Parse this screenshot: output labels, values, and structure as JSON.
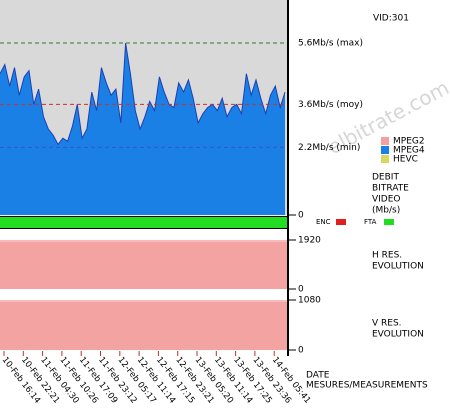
{
  "header": {
    "id_label": "VID:301",
    "watermark": "elbitrate.com"
  },
  "chart_data": [
    {
      "type": "area",
      "title": [
        "DEBIT",
        "BITRATE",
        "VIDEO",
        "(Mb/s)"
      ],
      "series": [
        {
          "color": "#1a80e6",
          "line_color": "#1c3fb5",
          "values": [
            4.6,
            4.9,
            4.2,
            4.8,
            3.9,
            4.5,
            4.7,
            3.6,
            4.1,
            3.2,
            2.8,
            2.6,
            2.3,
            2.5,
            2.4,
            2.9,
            3.6,
            2.5,
            2.8,
            4.0,
            3.4,
            4.8,
            4.3,
            3.9,
            4.1,
            3.0,
            5.6,
            4.6,
            3.4,
            2.8,
            3.2,
            3.7,
            3.4,
            4.5,
            4.0,
            3.6,
            3.5,
            4.3,
            4.0,
            4.4,
            3.8,
            3.0,
            3.3,
            3.5,
            3.6,
            3.4,
            3.8,
            3.2,
            3.5,
            3.6,
            3.3,
            4.6,
            3.9,
            4.4,
            3.8,
            3.3,
            3.9,
            4.2,
            3.5,
            4.0
          ]
        }
      ],
      "ylim": [
        0,
        7
      ],
      "yticks": [
        0
      ],
      "background": "#d9d9d9",
      "reference_lines": [
        {
          "value": 5.6,
          "label": "5.6Mb/s (max)",
          "color": "#2f7a2f"
        },
        {
          "value": 3.6,
          "label": "3.6Mb/s (moy)",
          "color": "#c83232"
        },
        {
          "value": 2.2,
          "label": "2.2Mb/s (min)",
          "color": "#3a52c8"
        }
      ],
      "legend": [
        {
          "name": "MPEG2",
          "color": "#f4a0a0"
        },
        {
          "name": "MPEG4",
          "color": "#1a80e6"
        },
        {
          "name": "HEVC",
          "color": "#d8d860"
        }
      ],
      "status": [
        {
          "name": "ENC",
          "color": "#e02020"
        },
        {
          "name": "FTA",
          "color": "#22dd22"
        }
      ]
    },
    {
      "type": "area",
      "title": [
        "H RES.",
        "EVOLUTION"
      ],
      "series": [
        {
          "color": "#f4a3a3",
          "values": [
            1920
          ]
        }
      ],
      "ylim": [
        0,
        1920
      ],
      "yticks": [
        0,
        1920
      ]
    },
    {
      "type": "area",
      "title": [
        "V RES.",
        "EVOLUTION"
      ],
      "series": [
        {
          "color": "#f4a3a3",
          "values": [
            1080
          ]
        }
      ],
      "ylim": [
        0,
        1080
      ],
      "yticks": [
        0,
        1080
      ]
    }
  ],
  "date_axis": {
    "label": [
      "DATE",
      "MESURES/MEASUREMENTS"
    ],
    "ticks": [
      "10-Feb 16:14",
      "10-Feb 22:21",
      "11-Feb 04:30",
      "11-Feb 10:26",
      "11-Feb 17:09",
      "11-Feb 23:12",
      "12-Feb 05:17",
      "12-Feb 11:14",
      "12-Feb 17:15",
      "12-Feb 23:21",
      "13-Feb 05:20",
      "13-Feb 11:14",
      "13-Feb 17:25",
      "13-Feb 23:36",
      "14-Feb 05:41"
    ]
  }
}
